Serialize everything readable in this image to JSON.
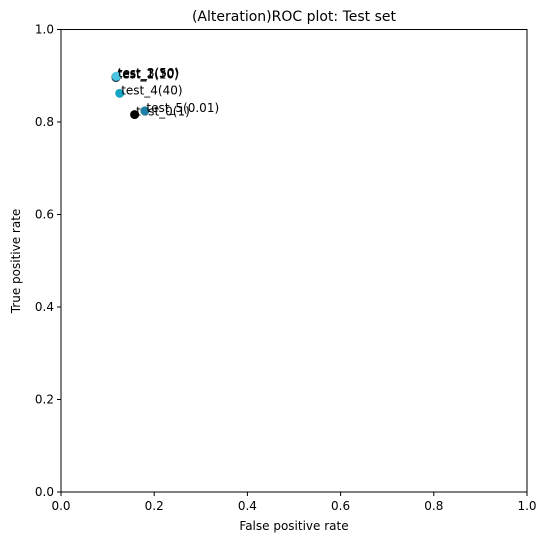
{
  "chart_data": {
    "type": "scatter",
    "title": "(Alteration)ROC plot: Test set",
    "xlabel": "False positive rate",
    "ylabel": "True positive rate",
    "xlim": [
      0.0,
      1.0
    ],
    "ylim": [
      0.0,
      1.0
    ],
    "xticks": [
      "0.0",
      "0.2",
      "0.4",
      "0.6",
      "0.8",
      "1.0"
    ],
    "yticks": [
      "0.0",
      "0.2",
      "0.4",
      "0.6",
      "0.8",
      "1.0"
    ],
    "grid": false,
    "points": [
      {
        "label": "test_0(1)",
        "x": 0.158,
        "y": 0.816,
        "color": "#000000"
      },
      {
        "label": "test_1(10)",
        "x": 0.118,
        "y": 0.896,
        "color": "#26414f"
      },
      {
        "label": "test_2(30)",
        "x": 0.118,
        "y": 0.898,
        "color": "#2e6b7f"
      },
      {
        "label": "test_3(50)",
        "x": 0.119,
        "y": 0.899,
        "color": "#4cc3e0"
      },
      {
        "label": "test_4(40)",
        "x": 0.126,
        "y": 0.862,
        "color": "#17a4c4"
      },
      {
        "label": "test_5(0.01)",
        "x": 0.18,
        "y": 0.824,
        "color": "#1f7fa6"
      }
    ]
  }
}
